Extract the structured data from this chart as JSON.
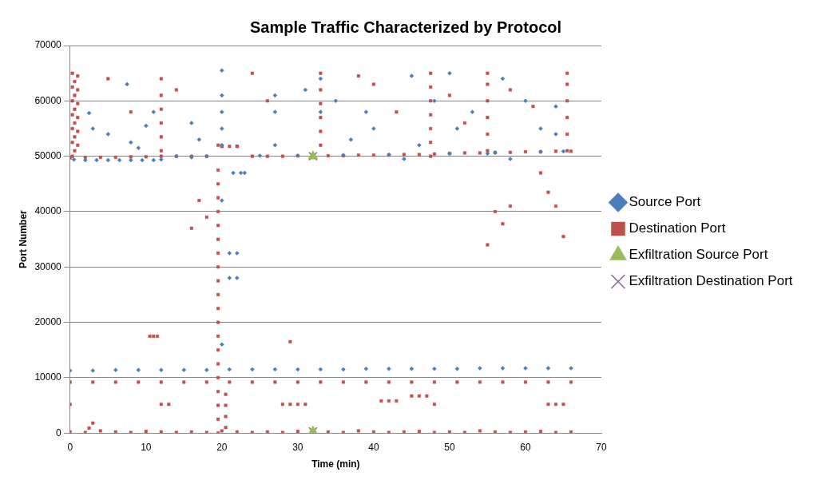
{
  "chart_data": {
    "type": "scatter",
    "title": "Sample Traffic Characterized by Protocol",
    "xlabel": "Time (min)",
    "ylabel": "Port Number",
    "xlim": [
      0,
      70
    ],
    "xticks": [
      0,
      10,
      20,
      30,
      40,
      50,
      60,
      70
    ],
    "ylim": [
      0,
      70000
    ],
    "yticks": [
      0,
      10000,
      20000,
      30000,
      40000,
      50000,
      60000,
      70000
    ],
    "grid": "y",
    "legend": "right",
    "series": [
      {
        "name": "Source Port",
        "color": "#4a7ebb",
        "marker": "diamond",
        "x": [
          0,
          3,
          6,
          9,
          12,
          15,
          18,
          21,
          24,
          27,
          30,
          33,
          36,
          39,
          42,
          45,
          48,
          51,
          54,
          57,
          60,
          63,
          66,
          0.5,
          2,
          3.5,
          5,
          6.5,
          8,
          9.5,
          11,
          12,
          2.5,
          3,
          5,
          7.5,
          8,
          9,
          10,
          11,
          16,
          17,
          20,
          20,
          20,
          20,
          20,
          20,
          20,
          21,
          22,
          21,
          22,
          21.5,
          22.5,
          23,
          27,
          27,
          27,
          31,
          33,
          33,
          35,
          37,
          39,
          40,
          44,
          45,
          46,
          48,
          50,
          51,
          53,
          55,
          57,
          58,
          60,
          62,
          64,
          64,
          14,
          16,
          18,
          25,
          30,
          36,
          42,
          50,
          56,
          62,
          65
        ],
        "values": [
          11300,
          11300,
          11400,
          11400,
          11400,
          11400,
          11400,
          11500,
          11500,
          11500,
          11500,
          11500,
          11500,
          11600,
          11600,
          11600,
          11600,
          11600,
          11700,
          11700,
          11700,
          11700,
          11700,
          49400,
          49300,
          49300,
          49300,
          49300,
          49300,
          49300,
          49300,
          49400,
          57800,
          55000,
          54000,
          63000,
          52500,
          51500,
          55500,
          58000,
          56000,
          53000,
          65500,
          61000,
          58000,
          55000,
          52000,
          42000,
          16000,
          32500,
          32500,
          28000,
          28000,
          47000,
          47000,
          47000,
          61000,
          58000,
          52000,
          62000,
          64000,
          58000,
          60000,
          53000,
          58000,
          55000,
          49500,
          64500,
          52000,
          60000,
          65000,
          55000,
          58000,
          50500,
          64000,
          49500,
          60000,
          55000,
          54000,
          59000,
          50000,
          49800,
          50000,
          50100,
          50100,
          50200,
          50300,
          50500,
          50600,
          50800,
          50900
        ]
      },
      {
        "name": "Destination Port",
        "color": "#c0504d",
        "marker": "square",
        "x": [
          0,
          3,
          6,
          9,
          12,
          15,
          18,
          21,
          24,
          27,
          30,
          33,
          36,
          39,
          42,
          45,
          48,
          51,
          54,
          57,
          60,
          63,
          66,
          0,
          2,
          4,
          6,
          8,
          10,
          12,
          14,
          16,
          18,
          20,
          22,
          24,
          26,
          28,
          30,
          34,
          36,
          38,
          40,
          42,
          44,
          46,
          48,
          50,
          52,
          54,
          56,
          58,
          60,
          62,
          64,
          66,
          2.5,
          3,
          0,
          12,
          13,
          28,
          29,
          30,
          31,
          41,
          42,
          43,
          45,
          46,
          47,
          48,
          63,
          64,
          65,
          0,
          2,
          4,
          6,
          8,
          10,
          12,
          14,
          16,
          18,
          20,
          22,
          24,
          26,
          28,
          30,
          34,
          36,
          38,
          40,
          42,
          44,
          46,
          48,
          50,
          52,
          54,
          56,
          58,
          60,
          62,
          64,
          66,
          20,
          21,
          22,
          0.3,
          0.3,
          0.3,
          0.3,
          0.3,
          0.3,
          0.3,
          0.6,
          0.6,
          0.6,
          0.6,
          0.6,
          0.6,
          1,
          1,
          1,
          1,
          1,
          1,
          12,
          12,
          12,
          12,
          12,
          12,
          19.5,
          19.5,
          19.5,
          19.5,
          19.5,
          19.5,
          19.5,
          19.5,
          19.5,
          19.5,
          19.5,
          19.5,
          19.5,
          19.5,
          19.5,
          19.5,
          19.5,
          19.5,
          19.5,
          19.5,
          19.5,
          20.5,
          20.5,
          20.5,
          20.5,
          33,
          33,
          33,
          33,
          33,
          33,
          47.5,
          47.5,
          47.5,
          47.5,
          47.5,
          47.5,
          47.5,
          55,
          55,
          55,
          55,
          55,
          55,
          65.5,
          65.5,
          65.5,
          65.5,
          65.5,
          65.5,
          10.5,
          11,
          11.5,
          29,
          55,
          56,
          57,
          58,
          62,
          63,
          64,
          65,
          16,
          17,
          18,
          5,
          8,
          14,
          24,
          26,
          38,
          40,
          43,
          50,
          52,
          58,
          61
        ],
        "values": [
          9200,
          9200,
          9200,
          9200,
          9200,
          9200,
          9200,
          9200,
          9200,
          9200,
          9200,
          9200,
          9200,
          9200,
          9200,
          9200,
          9200,
          9200,
          9200,
          9200,
          9200,
          9200,
          9200,
          200,
          100,
          400,
          200,
          100,
          300,
          200,
          100,
          200,
          100,
          400,
          200,
          100,
          200,
          100,
          300,
          200,
          100,
          400,
          200,
          100,
          200,
          300,
          100,
          200,
          100,
          400,
          200,
          100,
          200,
          300,
          100,
          200,
          900,
          1800,
          5200,
          5200,
          5200,
          5200,
          5200,
          5200,
          5200,
          5800,
          5800,
          5800,
          6700,
          6700,
          6700,
          5200,
          5200,
          5200,
          5200,
          49700,
          49800,
          49800,
          49800,
          49900,
          49900,
          50000,
          50000,
          50000,
          50000,
          51800,
          51800,
          50000,
          50000,
          50000,
          50100,
          50100,
          50100,
          50200,
          50200,
          50200,
          50300,
          50300,
          50400,
          50500,
          50600,
          50600,
          50700,
          50700,
          50800,
          50800,
          50900,
          50900,
          51800,
          51800,
          51800,
          50000,
          52500,
          55000,
          57500,
          60000,
          62500,
          65000,
          51000,
          53500,
          56000,
          58500,
          61000,
          63500,
          52000,
          54500,
          57000,
          59500,
          62000,
          64500,
          51000,
          53500,
          56000,
          58500,
          61000,
          64000,
          0,
          2500,
          5000,
          7500,
          10000,
          12500,
          15000,
          17500,
          20000,
          22500,
          25000,
          27500,
          30000,
          32500,
          35000,
          37500,
          40000,
          42500,
          45000,
          47500,
          52000,
          1000,
          3000,
          5000,
          7000,
          52000,
          54500,
          57000,
          59500,
          62000,
          65000,
          50000,
          52500,
          55000,
          57500,
          60000,
          62500,
          65000,
          51000,
          54000,
          57000,
          60000,
          63000,
          65000,
          51000,
          54000,
          57000,
          60000,
          63000,
          65000,
          17500,
          17500,
          17500,
          16500,
          34000,
          40000,
          37800,
          41000,
          47000,
          43500,
          41000,
          35500,
          37000,
          42000,
          39000,
          64000,
          58000,
          62000,
          65000,
          60000,
          64500,
          63000,
          58000,
          61000,
          56000,
          62000,
          59000
        ]
      },
      {
        "name": "Exfiltration Source Port",
        "color": "#9bbb59",
        "marker": "triangle",
        "x": [
          32,
          32
        ],
        "values": [
          50000,
          300
        ]
      },
      {
        "name": "Exfiltration Destination Port",
        "color": "#8064a2",
        "marker": "cross",
        "x": [
          32,
          32
        ],
        "values": [
          50000,
          300
        ]
      }
    ]
  }
}
